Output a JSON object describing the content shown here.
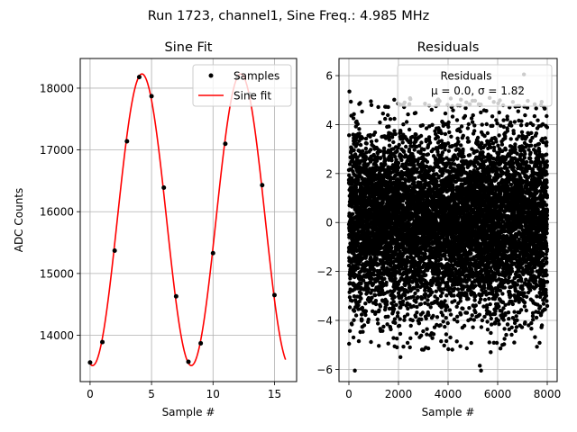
{
  "figure": {
    "suptitle": "Run 1723, channel1, Sine Freq.: 4.985 MHz"
  },
  "chart_data": [
    {
      "type": "line",
      "title": "Sine Fit",
      "xlabel": "Sample #",
      "ylabel": "ADC Counts",
      "xlim": [
        -0.8,
        16.8
      ],
      "ylim": [
        13250,
        18480
      ],
      "xticks": [
        0,
        5,
        10,
        15
      ],
      "yticks": [
        14000,
        15000,
        16000,
        17000,
        18000
      ],
      "grid": true,
      "legend": "top-right",
      "samples": {
        "name": "Samples",
        "color": "#000000",
        "x": [
          0,
          1,
          2,
          3,
          4,
          5,
          6,
          7,
          8,
          9,
          10,
          11,
          12,
          13,
          14,
          15
        ],
        "y": [
          13560,
          13890,
          15370,
          17140,
          18180,
          17870,
          16390,
          14630,
          13570,
          13870,
          15330,
          17100,
          18170,
          17900,
          16430,
          14650
        ]
      },
      "fit": {
        "name": "Sine fit",
        "color": "#ff0000",
        "model": "sine",
        "offset": 15870,
        "amplitude": 2360,
        "period_samples": 8.03,
        "peak_x": 4.22,
        "x_range": [
          0,
          15.9
        ]
      }
    },
    {
      "type": "scatter",
      "title": "Residuals",
      "xlabel": "Sample #",
      "ylabel": "",
      "xlim": [
        -400,
        8400
      ],
      "ylim": [
        -6.5,
        6.7
      ],
      "xticks": [
        0,
        2000,
        4000,
        6000,
        8000
      ],
      "yticks": [
        -6,
        -4,
        -2,
        0,
        2,
        4,
        6
      ],
      "grid": true,
      "legend": "top-right",
      "series": {
        "name": "Residuals",
        "color": "#000000",
        "mean": 0.0,
        "sigma": 1.82,
        "n_points": 8000,
        "x_range": [
          0,
          8000
        ],
        "sample_points": [
          {
            "x": 20,
            "y": 5.35
          },
          {
            "x": 240,
            "y": -6.05
          },
          {
            "x": 2080,
            "y": -5.5
          },
          {
            "x": 5280,
            "y": -5.85
          },
          {
            "x": 5330,
            "y": -6.05
          },
          {
            "x": 7060,
            "y": 6.05
          },
          {
            "x": 6900,
            "y": 5.5
          },
          {
            "x": 5720,
            "y": -5.3
          }
        ]
      },
      "legend_entries": [
        "Residuals",
        "μ = 0.0, σ = 1.82"
      ],
      "legend_stats": {
        "label": "μ = 0.0, σ = 1.82",
        "mu": "0.0",
        "sigma": "1.82"
      }
    }
  ]
}
